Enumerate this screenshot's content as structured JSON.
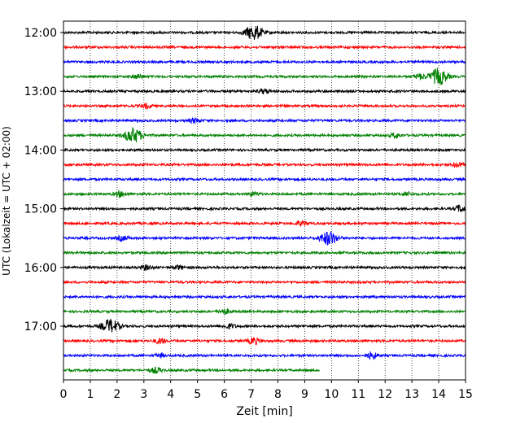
{
  "chart_data": {
    "type": "line",
    "title": "",
    "xlabel": "Zeit  [min]",
    "ylabel": "UTC (Lokalzeit = UTC + 02:00)",
    "xlim": [
      0,
      15
    ],
    "xticks": [
      0,
      1,
      2,
      3,
      4,
      5,
      6,
      7,
      8,
      9,
      10,
      11,
      12,
      13,
      14,
      15
    ],
    "ytick_labels": [
      "12:00",
      "13:00",
      "14:00",
      "15:00",
      "16:00",
      "17:00"
    ],
    "row_interval_min": 15,
    "grid": "vertical-dotted",
    "color_cycle": [
      "#000000",
      "#ff0000",
      "#0000ff",
      "#008000"
    ],
    "traces": [
      {
        "start": "12:00",
        "end_min": 15,
        "color": "black",
        "events": [
          {
            "t": 7.1,
            "amp": 1.0
          }
        ]
      },
      {
        "start": "12:15",
        "end_min": 15,
        "color": "red",
        "events": []
      },
      {
        "start": "12:30",
        "end_min": 15,
        "color": "blue",
        "events": []
      },
      {
        "start": "12:45",
        "end_min": 15,
        "color": "green",
        "events": [
          {
            "t": 2.8,
            "amp": 0.25
          },
          {
            "t": 13.3,
            "amp": 0.35
          },
          {
            "t": 14.0,
            "amp": 1.1
          }
        ]
      },
      {
        "start": "13:00",
        "end_min": 15,
        "color": "black",
        "events": [
          {
            "t": 7.5,
            "amp": 0.3
          }
        ]
      },
      {
        "start": "13:15",
        "end_min": 15,
        "color": "red",
        "events": [
          {
            "t": 3.1,
            "amp": 0.3
          }
        ]
      },
      {
        "start": "13:30",
        "end_min": 15,
        "color": "blue",
        "events": [
          {
            "t": 4.9,
            "amp": 0.3
          }
        ]
      },
      {
        "start": "13:45",
        "end_min": 15,
        "color": "green",
        "events": [
          {
            "t": 2.6,
            "amp": 1.0
          },
          {
            "t": 12.4,
            "amp": 0.3
          }
        ]
      },
      {
        "start": "14:00",
        "end_min": 15,
        "color": "black",
        "events": []
      },
      {
        "start": "14:15",
        "end_min": 15,
        "color": "red",
        "events": [
          {
            "t": 14.7,
            "amp": 0.3
          }
        ]
      },
      {
        "start": "14:30",
        "end_min": 15,
        "color": "blue",
        "events": []
      },
      {
        "start": "14:45",
        "end_min": 15,
        "color": "green",
        "events": [
          {
            "t": 2.1,
            "amp": 0.35
          },
          {
            "t": 7.1,
            "amp": 0.25
          },
          {
            "t": 12.8,
            "amp": 0.25
          }
        ]
      },
      {
        "start": "15:00",
        "end_min": 15,
        "color": "black",
        "events": [
          {
            "t": 14.8,
            "amp": 0.45
          }
        ]
      },
      {
        "start": "15:15",
        "end_min": 15,
        "color": "red",
        "events": [
          {
            "t": 8.9,
            "amp": 0.3
          }
        ]
      },
      {
        "start": "15:30",
        "end_min": 15,
        "color": "blue",
        "events": [
          {
            "t": 2.2,
            "amp": 0.3
          },
          {
            "t": 9.9,
            "amp": 0.9
          }
        ]
      },
      {
        "start": "15:45",
        "end_min": 15,
        "color": "green",
        "events": []
      },
      {
        "start": "16:00",
        "end_min": 15,
        "color": "black",
        "events": [
          {
            "t": 3.1,
            "amp": 0.3
          },
          {
            "t": 4.3,
            "amp": 0.25
          }
        ]
      },
      {
        "start": "16:15",
        "end_min": 15,
        "color": "red",
        "events": []
      },
      {
        "start": "16:30",
        "end_min": 15,
        "color": "blue",
        "events": []
      },
      {
        "start": "16:45",
        "end_min": 15,
        "color": "green",
        "events": [
          {
            "t": 6.0,
            "amp": 0.3
          }
        ]
      },
      {
        "start": "17:00",
        "end_min": 15,
        "color": "black",
        "events": [
          {
            "t": 1.75,
            "amp": 0.9
          },
          {
            "t": 6.2,
            "amp": 0.3
          }
        ]
      },
      {
        "start": "17:15",
        "end_min": 15,
        "color": "red",
        "events": [
          {
            "t": 3.6,
            "amp": 0.35
          },
          {
            "t": 7.1,
            "amp": 0.45
          }
        ]
      },
      {
        "start": "17:30",
        "end_min": 15,
        "color": "blue",
        "events": [
          {
            "t": 3.6,
            "amp": 0.25
          },
          {
            "t": 11.5,
            "amp": 0.45
          }
        ]
      },
      {
        "start": "17:45",
        "end_min": 9.55,
        "color": "green",
        "events": [
          {
            "t": 3.45,
            "amp": 0.35
          }
        ]
      }
    ]
  }
}
